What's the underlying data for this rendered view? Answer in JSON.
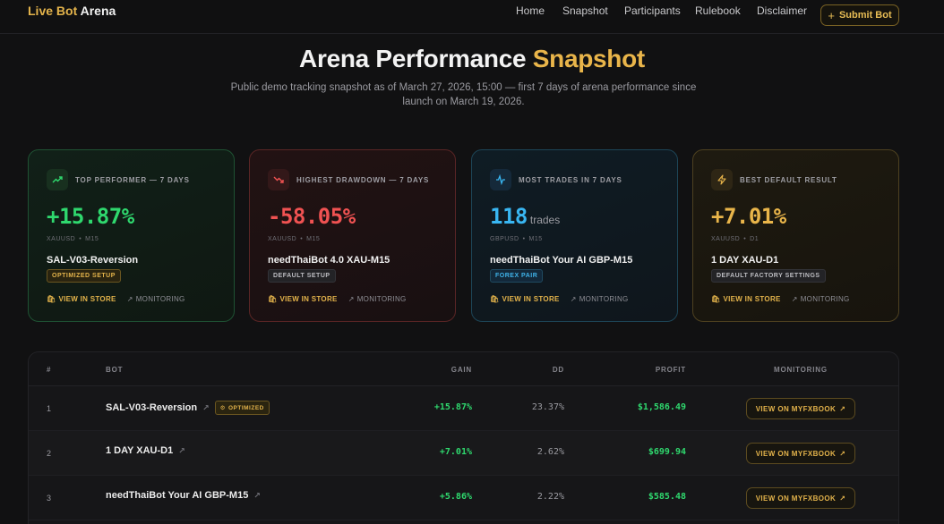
{
  "nav": {
    "brand_1": "Live Bot",
    "brand_2": "Arena",
    "links": [
      "Home",
      "Snapshot",
      "Participants",
      "Rulebook",
      "Disclaimer"
    ],
    "submit_label": "Submit Bot"
  },
  "hero": {
    "title_main": "Arena Performance",
    "title_accent": "Snapshot",
    "subtitle": "Public demo tracking snapshot as of March 27, 2026, 15:00 — first 7 days of arena performance since launch on March 19, 2026."
  },
  "cards": [
    {
      "label": "TOP PERFORMER — 7 DAYS",
      "value": "+15.87%",
      "unit": "",
      "pair": "XAUUSD",
      "timeframe": "M15",
      "bot": "SAL-V03-Reversion",
      "badge": "OPTIMIZED SETUP",
      "store_label": "VIEW IN STORE",
      "monitor_label": "MONITORING",
      "icon": "trending-up-icon"
    },
    {
      "label": "HIGHEST DRAWDOWN — 7 DAYS",
      "value": "-58.05%",
      "unit": "",
      "pair": "XAUUSD",
      "timeframe": "M15",
      "bot": "needThaiBot 4.0 XAU-M15",
      "badge": "DEFAULT SETUP",
      "store_label": "VIEW IN STORE",
      "monitor_label": "MONITORING",
      "icon": "trending-down-icon"
    },
    {
      "label": "MOST TRADES IN 7 DAYS",
      "value": "118",
      "unit": "trades",
      "pair": "GBPUSD",
      "timeframe": "M15",
      "bot": "needThaiBot Your AI GBP-M15",
      "badge": "FOREX PAIR",
      "store_label": "VIEW IN STORE",
      "monitor_label": "MONITORING",
      "icon": "activity-icon"
    },
    {
      "label": "BEST DEFAULT RESULT",
      "value": "+7.01%",
      "unit": "",
      "pair": "XAUUSD",
      "timeframe": "D1",
      "bot": "1 DAY XAU-D1",
      "badge": "DEFAULT FACTORY SETTINGS",
      "store_label": "VIEW IN STORE",
      "monitor_label": "MONITORING",
      "icon": "lightning-icon"
    }
  ],
  "table": {
    "headers": {
      "rank": "#",
      "bot": "BOT",
      "gain": "GAIN",
      "dd": "DD",
      "profit": "PROFIT",
      "monitoring": "MONITORING"
    },
    "button_label": "VIEW ON MYFXBOOK",
    "rows": [
      {
        "rank": "1",
        "bot": "SAL-V03-Reversion",
        "badge": "OPTIMIZED",
        "gain": "+15.87%",
        "dd": "23.37%",
        "profit": "$1,586.49"
      },
      {
        "rank": "2",
        "bot": "1 DAY XAU-D1",
        "badge": "",
        "gain": "+7.01%",
        "dd": "2.62%",
        "profit": "$699.94"
      },
      {
        "rank": "3",
        "bot": "needThaiBot Your AI GBP-M15",
        "badge": "",
        "gain": "+5.86%",
        "dd": "2.22%",
        "profit": "$585.48"
      }
    ]
  },
  "colors": {
    "accent_gold": "#e9b54a",
    "positive": "#2fd86e",
    "negative": "#f05252",
    "info": "#39b6f2"
  }
}
